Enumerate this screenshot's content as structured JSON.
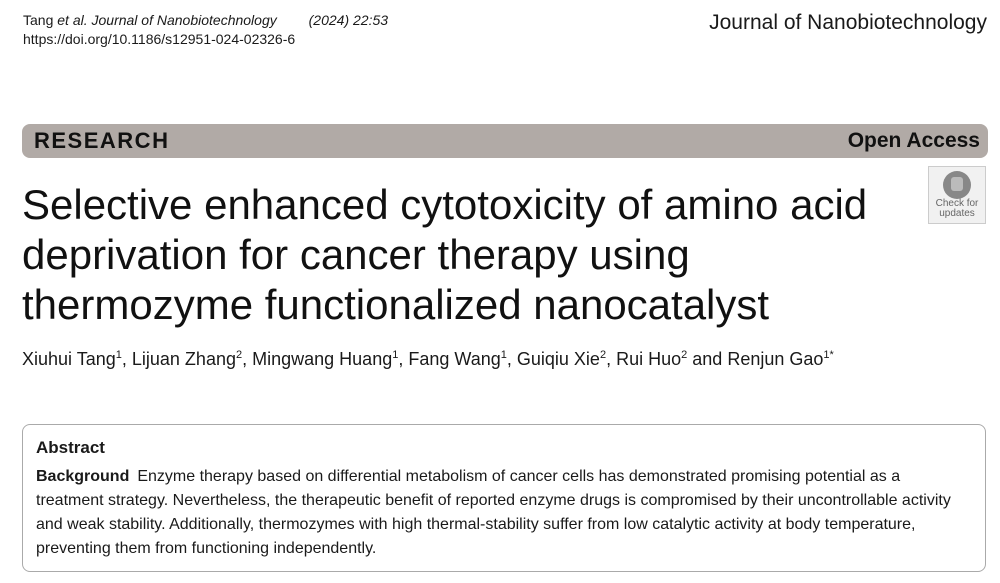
{
  "header": {
    "citation_author": "Tang",
    "citation_etal": "et al.",
    "citation_journal": "Journal of Nanobiotechnology",
    "citation_year_vol": "(2024) 22:53",
    "doi": "https://doi.org/10.1186/s12951-024-02326-6",
    "journal_name": "Journal of Nanobiotechnology"
  },
  "banner": {
    "type": "RESEARCH",
    "access": "Open Access",
    "bar_color": "#b1aaa6"
  },
  "badge": {
    "line1": "Check for",
    "line2": "updates",
    "icon": "check-for-updates-icon"
  },
  "title": "Selective enhanced cytotoxicity of amino acid deprivation for cancer therapy using thermozyme functionalized nanocatalyst",
  "authors": [
    {
      "name": "Xiuhui Tang",
      "aff": "1"
    },
    {
      "name": "Lijuan Zhang",
      "aff": "2"
    },
    {
      "name": "Mingwang Huang",
      "aff": "1"
    },
    {
      "name": "Fang Wang",
      "aff": "1"
    },
    {
      "name": "Guiqiu Xie",
      "aff": "2"
    },
    {
      "name": "Rui Huo",
      "aff": "2"
    },
    {
      "name": "Renjun Gao",
      "aff": "1*"
    }
  ],
  "authors_and": "and",
  "abstract": {
    "heading": "Abstract",
    "section_label": "Background",
    "text": "Enzyme therapy based on differential metabolism of cancer cells has demonstrated promising potential as a treatment strategy. Nevertheless, the therapeutic benefit of reported enzyme drugs is compromised by their uncontrollable activity and weak stability. Additionally, thermozymes with high thermal-stability suffer from low catalytic activity at body temperature, preventing them from functioning independently."
  }
}
